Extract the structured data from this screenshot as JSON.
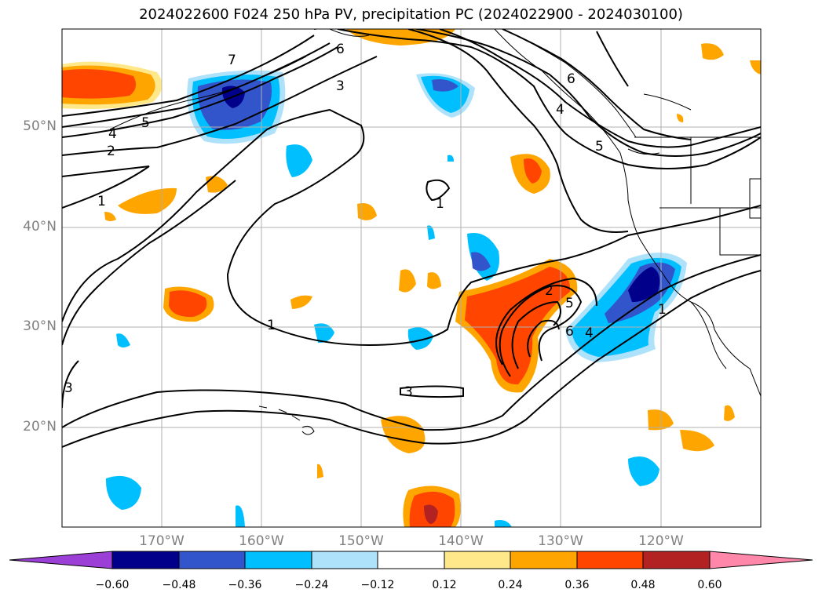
{
  "title": "2024022600 F024 250 hPa PV, precipitation PC (2024022900 - 2024030100)",
  "map": {
    "lat_labels": [
      "50°N",
      "40°N",
      "30°N",
      "20°N"
    ],
    "lon_labels": [
      "170°W",
      "160°W",
      "150°W",
      "140°W",
      "130°W",
      "120°W"
    ],
    "pv_contour_labels": [
      "1",
      "2",
      "3",
      "4",
      "5",
      "6"
    ]
  },
  "colorbar": {
    "ticks": [
      "−0.60",
      "−0.48",
      "−0.36",
      "−0.24",
      "−0.12",
      "0.12",
      "0.24",
      "0.36",
      "0.48",
      "0.60"
    ],
    "colors": {
      "below": "#9b3fd6",
      "n060": "#00008b",
      "n048": "#3355cc",
      "n036": "#00bfff",
      "n024": "#aee2fb",
      "n012": "#ffffff",
      "p012": "#ffe88a",
      "p024": "#ffa500",
      "p036": "#ff4500",
      "p048": "#b22222",
      "above": "#ff88aa"
    }
  }
}
